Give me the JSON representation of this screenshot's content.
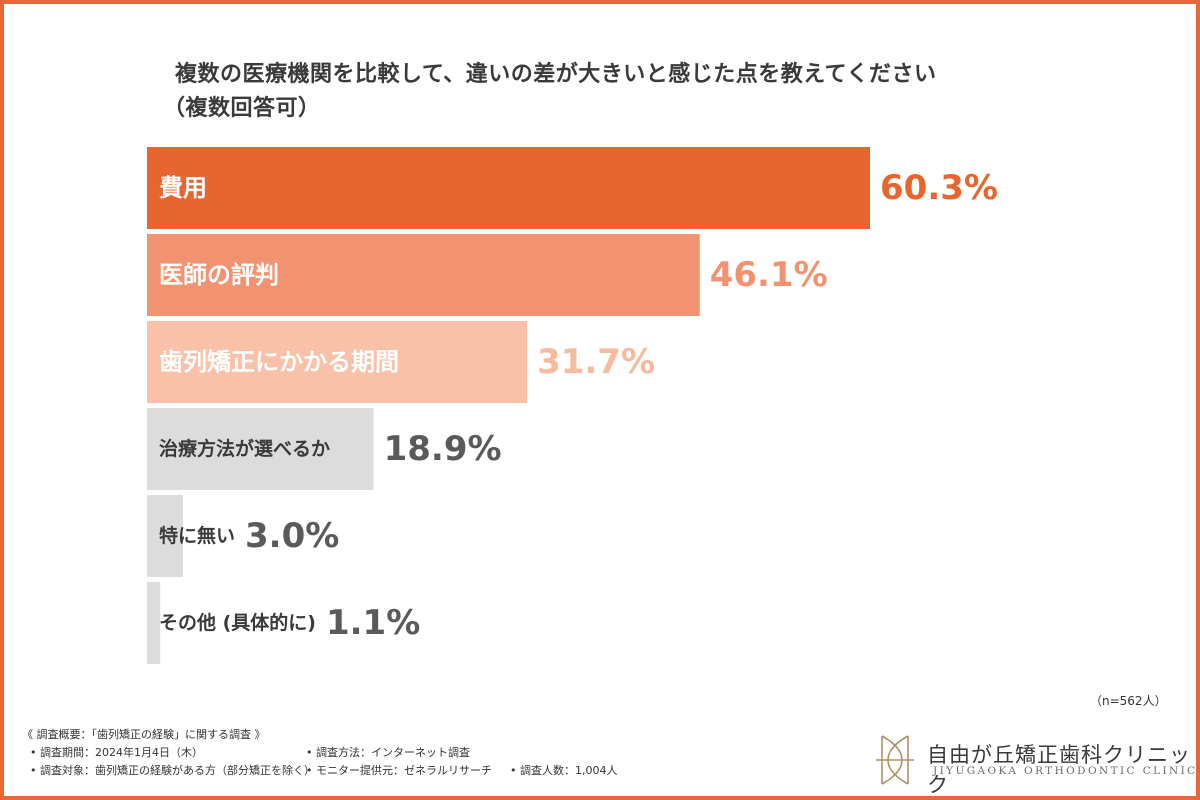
{
  "chart_data": {
    "type": "bar",
    "orientation": "horizontal",
    "title": "複数の医療機関を比較して、違いの差が大きいと感じた点を教えてください",
    "subtitle": "（複数回答可）",
    "categories": [
      "費用",
      "医師の評判",
      "歯列矯正にかかる期間",
      "治療方法が選べるか",
      "特に無い",
      "その他 (具体的に)"
    ],
    "values": [
      60.3,
      46.1,
      31.7,
      18.9,
      3.0,
      1.1
    ],
    "value_labels": [
      "60.3%",
      "46.1%",
      "31.7%",
      "18.9%",
      "3.0%",
      "1.1%"
    ],
    "unit": "%",
    "xlim": [
      0,
      60.3
    ],
    "bar_colors": [
      "#e8652f",
      "#f39270",
      "#f8c1a8",
      "#dcdcdc",
      "#dcdcdc",
      "#dcdcdc"
    ],
    "category_label_colors": [
      "#ffffff",
      "#ffffff",
      "#ffffff",
      "#3a3a3a",
      "#3a3a3a",
      "#3a3a3a"
    ],
    "value_label_colors": [
      "#e8652f",
      "#f39270",
      "#f8b99d",
      "#5a5a5a",
      "#5a5a5a",
      "#5a5a5a"
    ],
    "sample_note": "（n=562人）",
    "grid": false,
    "legend": "none"
  },
  "footer": {
    "survey_title": "《 調査概要：「歯列矯正の経験」に関する調査 》",
    "period": "• 調査期間：2024年1月4日（木）",
    "method": "• 調査方法：インターネット調査",
    "target": "• 調査対象：歯列矯正の経験がある方（部分矯正を除く）",
    "provider": "• モニター提供元：ゼネラルリサーチ",
    "count": "• 調査人数：1,004人"
  },
  "logo": {
    "name_jp": "自由が丘矯正歯科クリニック",
    "name_en": "JIYUGAOKA ORTHODONTIC CLINIC"
  },
  "colors": {
    "frame": "#e8673a",
    "accent": "#e8652f",
    "logo_mark": "#b69062"
  }
}
